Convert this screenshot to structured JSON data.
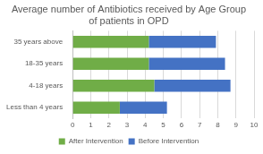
{
  "chart_data": {
    "type": "bar",
    "orientation": "horizontal",
    "stacked": true,
    "title": "Average number of Antibiotics received by Age Group of patients in OPD",
    "categories": [
      "35 years above",
      "18-35 years",
      "4-18 years",
      "Less than 4 years"
    ],
    "series": [
      {
        "name": "After Intervention",
        "color": "#70ad47",
        "values": [
          4.2,
          4.2,
          4.5,
          2.6
        ]
      },
      {
        "name": "Before Intervention",
        "color": "#4472c4",
        "values": [
          3.7,
          4.2,
          4.2,
          2.6
        ]
      }
    ],
    "xlim": [
      0,
      10
    ],
    "xticks": [
      0,
      1,
      2,
      3,
      4,
      5,
      6,
      7,
      8,
      9,
      10
    ],
    "grid": true,
    "legend": "bottom"
  }
}
